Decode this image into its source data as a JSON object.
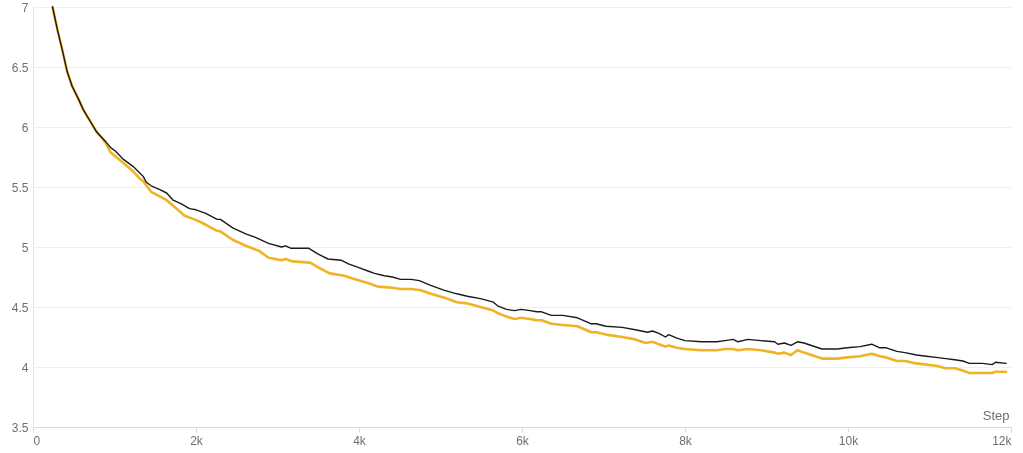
{
  "chart_data": {
    "type": "line",
    "xlabel": "Step",
    "xlim": [
      0,
      12000
    ],
    "xticks": [
      0,
      {
        "value": 2000,
        "label": "2k"
      },
      {
        "value": 4000,
        "label": "4k"
      },
      {
        "value": 6000,
        "label": "6k"
      },
      {
        "value": 8000,
        "label": "8k"
      },
      {
        "value": 10000,
        "label": "10k"
      },
      {
        "value": 12000,
        "label": "12k"
      }
    ],
    "ylim": [
      3.5,
      7
    ],
    "yticks": [
      3.5,
      4,
      4.5,
      5,
      5.5,
      6,
      6.5,
      7
    ],
    "grid": "y",
    "line_style": "solid",
    "series": [
      {
        "color": "#f0b323",
        "x": [
          240,
          300,
          360,
          420,
          480,
          560,
          620,
          700,
          780,
          890,
          950,
          1110,
          1230,
          1310,
          1350,
          1450,
          1590,
          1640,
          1760,
          1860,
          1980,
          2080,
          2240,
          2300,
          2450,
          2610,
          2770,
          2890,
          3050,
          3100,
          3180,
          3400,
          3500,
          3640,
          3820,
          3910,
          4110,
          4230,
          4410,
          4510,
          4640,
          4760,
          4880,
          5040,
          5200,
          5330,
          5490,
          5650,
          5700,
          5810,
          5910,
          5990,
          6100,
          6180,
          6240,
          6360,
          6500,
          6680,
          6850,
          6910,
          7030,
          7230,
          7390,
          7520,
          7600,
          7680,
          7760,
          7800,
          7900,
          8000,
          8200,
          8390,
          8490,
          8590,
          8650,
          8770,
          8930,
          9100,
          9140,
          9220,
          9300,
          9380,
          9460,
          9680,
          9870,
          9990,
          10150,
          10290,
          10390,
          10470,
          10600,
          10700,
          10840,
          10960,
          11080,
          11200,
          11310,
          11410,
          11490,
          11650,
          11770,
          11810,
          11940
        ],
        "values": [
          7.0,
          6.81,
          6.64,
          6.46,
          6.34,
          6.23,
          6.14,
          6.05,
          5.96,
          5.87,
          5.79,
          5.7,
          5.63,
          5.57,
          5.55,
          5.46,
          5.41,
          5.39,
          5.32,
          5.26,
          5.23,
          5.2,
          5.14,
          5.13,
          5.06,
          5.01,
          4.97,
          4.91,
          4.89,
          4.9,
          4.88,
          4.87,
          4.83,
          4.78,
          4.76,
          4.74,
          4.7,
          4.67,
          4.66,
          4.65,
          4.65,
          4.64,
          4.61,
          4.58,
          4.54,
          4.53,
          4.5,
          4.47,
          4.45,
          4.42,
          4.4,
          4.41,
          4.4,
          4.39,
          4.39,
          4.36,
          4.35,
          4.34,
          4.29,
          4.29,
          4.27,
          4.25,
          4.23,
          4.2,
          4.21,
          4.19,
          4.17,
          4.18,
          4.16,
          4.15,
          4.14,
          4.14,
          4.15,
          4.15,
          4.14,
          4.15,
          4.14,
          4.12,
          4.11,
          4.12,
          4.1,
          4.14,
          4.12,
          4.07,
          4.07,
          4.08,
          4.09,
          4.11,
          4.09,
          4.08,
          4.05,
          4.05,
          4.03,
          4.02,
          4.01,
          3.99,
          3.99,
          3.97,
          3.95,
          3.95,
          3.95,
          3.96,
          3.96
        ]
      },
      {
        "color": "#1a1a1a",
        "x": [
          240,
          300,
          360,
          420,
          480,
          560,
          620,
          700,
          780,
          890,
          950,
          1010,
          1110,
          1230,
          1350,
          1390,
          1450,
          1550,
          1640,
          1720,
          1820,
          1920,
          2000,
          2120,
          2260,
          2300,
          2450,
          2610,
          2730,
          2890,
          3050,
          3100,
          3160,
          3380,
          3500,
          3620,
          3780,
          3870,
          3990,
          4110,
          4190,
          4310,
          4410,
          4510,
          4640,
          4740,
          4880,
          5040,
          5200,
          5330,
          5490,
          5650,
          5700,
          5810,
          5910,
          5990,
          6100,
          6180,
          6240,
          6360,
          6500,
          6680,
          6850,
          6910,
          7030,
          7230,
          7390,
          7540,
          7600,
          7680,
          7760,
          7800,
          7900,
          8000,
          8200,
          8390,
          8490,
          8590,
          8650,
          8770,
          8930,
          9100,
          9140,
          9220,
          9300,
          9380,
          9460,
          9680,
          9870,
          9990,
          10150,
          10290,
          10390,
          10470,
          10600,
          10700,
          10840,
          10960,
          11080,
          11200,
          11310,
          11410,
          11490,
          11650,
          11770,
          11810,
          11940
        ],
        "values": [
          7.0,
          6.81,
          6.64,
          6.46,
          6.34,
          6.23,
          6.14,
          6.05,
          5.96,
          5.88,
          5.83,
          5.8,
          5.73,
          5.67,
          5.59,
          5.54,
          5.51,
          5.48,
          5.45,
          5.39,
          5.36,
          5.32,
          5.31,
          5.28,
          5.23,
          5.23,
          5.16,
          5.11,
          5.08,
          5.03,
          5.0,
          5.01,
          4.99,
          4.99,
          4.94,
          4.9,
          4.89,
          4.86,
          4.83,
          4.8,
          4.78,
          4.76,
          4.75,
          4.73,
          4.73,
          4.72,
          4.68,
          4.64,
          4.61,
          4.59,
          4.57,
          4.54,
          4.51,
          4.48,
          4.47,
          4.48,
          4.47,
          4.46,
          4.46,
          4.43,
          4.43,
          4.41,
          4.36,
          4.36,
          4.34,
          4.33,
          4.31,
          4.29,
          4.3,
          4.28,
          4.25,
          4.27,
          4.24,
          4.22,
          4.21,
          4.21,
          4.22,
          4.23,
          4.21,
          4.23,
          4.22,
          4.21,
          4.19,
          4.2,
          4.18,
          4.21,
          4.2,
          4.15,
          4.15,
          4.16,
          4.17,
          4.19,
          4.16,
          4.16,
          4.13,
          4.12,
          4.1,
          4.09,
          4.08,
          4.07,
          4.06,
          4.05,
          4.03,
          4.03,
          4.02,
          4.04,
          4.03
        ]
      }
    ]
  }
}
